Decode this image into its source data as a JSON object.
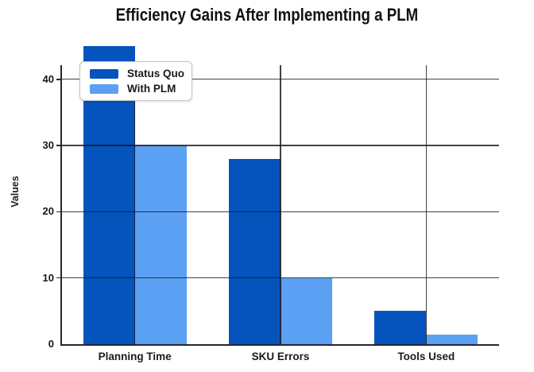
{
  "chart_data": {
    "type": "bar",
    "title": "Efficiency Gains After Implementing a PLM",
    "xlabel": "",
    "ylabel": "Values",
    "categories": [
      "Planning Time",
      "SKU Errors",
      "Tools Used"
    ],
    "series": [
      {
        "name": "Status Quo",
        "color": "#0553bd",
        "values": [
          45,
          28,
          5
        ]
      },
      {
        "name": "With PLM",
        "color": "#5ba0f2",
        "values": [
          30,
          10,
          1.5
        ]
      }
    ],
    "y_ticks": [
      0,
      10,
      20,
      30,
      40
    ],
    "ylim": [
      0,
      42
    ],
    "grid": true,
    "legend_position": "top-left",
    "background_color": "#ffffff",
    "axis_color": "#26282c"
  }
}
